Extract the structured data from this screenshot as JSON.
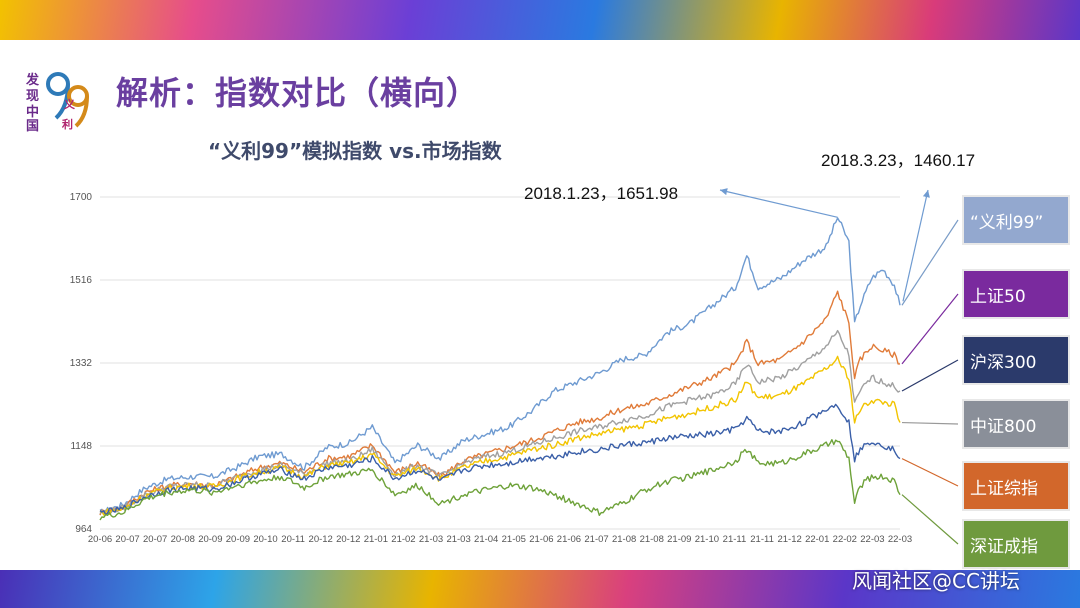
{
  "slide": {
    "title": "解析：指数对比（横向）",
    "logo_text": "发现中国 义利 99",
    "watermark": "风闻社区@CC讲坛"
  },
  "chart_data": {
    "type": "line",
    "title": "“义利99”模拟指数 vs.市场指数",
    "y_ticks": [
      964,
      1148,
      1332,
      1516,
      1700
    ],
    "ylim": [
      964,
      1700
    ],
    "x_ticks": [
      "20-06",
      "20-07",
      "20-07",
      "20-08",
      "20-09",
      "20-09",
      "20-10",
      "20-11",
      "20-12",
      "20-12",
      "21-01",
      "21-02",
      "21-03",
      "21-03",
      "21-04",
      "21-05",
      "21-06",
      "21-06",
      "21-07",
      "21-08",
      "21-08",
      "21-09",
      "21-10",
      "21-11",
      "21-11",
      "21-12",
      "22-01",
      "22-02",
      "22-03",
      "22-03"
    ],
    "annotations": [
      {
        "label": "2018.1.23，1651.98",
        "x": "22-01",
        "y": 1652
      },
      {
        "label": "2018.3.23，1460.17",
        "x": "22-03",
        "y": 1460
      }
    ],
    "series": [
      {
        "name": "“义利99”",
        "color": "#6f9bd1",
        "box_color": "#93a8cf",
        "anchors": [
          [
            0,
            1000
          ],
          [
            2,
            1018
          ],
          [
            4,
            1055
          ],
          [
            6,
            1075
          ],
          [
            8,
            1080
          ],
          [
            10,
            1080
          ],
          [
            12,
            1100
          ],
          [
            14,
            1125
          ],
          [
            16,
            1130
          ],
          [
            18,
            1100
          ],
          [
            20,
            1145
          ],
          [
            22,
            1155
          ],
          [
            24,
            1190
          ],
          [
            26,
            1110
          ],
          [
            28,
            1150
          ],
          [
            30,
            1120
          ],
          [
            32,
            1160
          ],
          [
            34,
            1175
          ],
          [
            36,
            1190
          ],
          [
            38,
            1225
          ],
          [
            40,
            1270
          ],
          [
            42,
            1290
          ],
          [
            44,
            1310
          ],
          [
            46,
            1340
          ],
          [
            48,
            1350
          ],
          [
            50,
            1400
          ],
          [
            52,
            1420
          ],
          [
            54,
            1460
          ],
          [
            56,
            1500
          ],
          [
            57,
            1570
          ],
          [
            58,
            1500
          ],
          [
            60,
            1520
          ],
          [
            62,
            1560
          ],
          [
            64,
            1590
          ],
          [
            65,
            1655
          ],
          [
            66,
            1600
          ],
          [
            66.5,
            1420
          ],
          [
            67,
            1460
          ],
          [
            68,
            1520
          ],
          [
            69,
            1540
          ],
          [
            70,
            1505
          ],
          [
            70.5,
            1460
          ]
        ]
      },
      {
        "name": "上证50",
        "color": "#e07b39",
        "box_color": "#7a2a9e",
        "anchors": [
          [
            0,
            1000
          ],
          [
            2,
            1012
          ],
          [
            4,
            1045
          ],
          [
            6,
            1060
          ],
          [
            8,
            1065
          ],
          [
            10,
            1060
          ],
          [
            12,
            1080
          ],
          [
            14,
            1100
          ],
          [
            16,
            1110
          ],
          [
            18,
            1090
          ],
          [
            20,
            1120
          ],
          [
            22,
            1125
          ],
          [
            24,
            1150
          ],
          [
            26,
            1090
          ],
          [
            28,
            1110
          ],
          [
            30,
            1080
          ],
          [
            32,
            1115
          ],
          [
            34,
            1130
          ],
          [
            36,
            1145
          ],
          [
            38,
            1160
          ],
          [
            40,
            1180
          ],
          [
            42,
            1200
          ],
          [
            44,
            1210
          ],
          [
            46,
            1230
          ],
          [
            48,
            1240
          ],
          [
            50,
            1260
          ],
          [
            52,
            1280
          ],
          [
            54,
            1300
          ],
          [
            56,
            1330
          ],
          [
            57,
            1380
          ],
          [
            58,
            1330
          ],
          [
            60,
            1340
          ],
          [
            62,
            1380
          ],
          [
            64,
            1430
          ],
          [
            65,
            1490
          ],
          [
            66,
            1420
          ],
          [
            66.5,
            1300
          ],
          [
            67,
            1340
          ],
          [
            68,
            1370
          ],
          [
            69,
            1360
          ],
          [
            70,
            1350
          ],
          [
            70.5,
            1330
          ]
        ]
      },
      {
        "name": "沪深300",
        "color": "#a0a0a0",
        "box_color": "#2b3a6b",
        "anchors": [
          [
            0,
            1000
          ],
          [
            2,
            1010
          ],
          [
            4,
            1040
          ],
          [
            6,
            1058
          ],
          [
            8,
            1062
          ],
          [
            10,
            1060
          ],
          [
            12,
            1078
          ],
          [
            14,
            1095
          ],
          [
            16,
            1105
          ],
          [
            18,
            1085
          ],
          [
            20,
            1110
          ],
          [
            22,
            1115
          ],
          [
            24,
            1140
          ],
          [
            26,
            1085
          ],
          [
            28,
            1105
          ],
          [
            30,
            1080
          ],
          [
            32,
            1110
          ],
          [
            34,
            1125
          ],
          [
            36,
            1135
          ],
          [
            38,
            1150
          ],
          [
            40,
            1165
          ],
          [
            42,
            1180
          ],
          [
            44,
            1190
          ],
          [
            46,
            1205
          ],
          [
            48,
            1215
          ],
          [
            50,
            1235
          ],
          [
            52,
            1250
          ],
          [
            54,
            1260
          ],
          [
            56,
            1285
          ],
          [
            57,
            1330
          ],
          [
            58,
            1290
          ],
          [
            60,
            1300
          ],
          [
            62,
            1330
          ],
          [
            64,
            1370
          ],
          [
            65,
            1400
          ],
          [
            66,
            1350
          ],
          [
            66.5,
            1240
          ],
          [
            67,
            1270
          ],
          [
            68,
            1300
          ],
          [
            69,
            1290
          ],
          [
            70,
            1280
          ],
          [
            70.5,
            1270
          ]
        ]
      },
      {
        "name": "中证800",
        "color": "#f2c400",
        "box_color": "#8a8f99",
        "anchors": [
          [
            0,
            1000
          ],
          [
            2,
            1008
          ],
          [
            4,
            1038
          ],
          [
            6,
            1055
          ],
          [
            8,
            1060
          ],
          [
            10,
            1058
          ],
          [
            12,
            1075
          ],
          [
            14,
            1090
          ],
          [
            16,
            1100
          ],
          [
            18,
            1080
          ],
          [
            20,
            1105
          ],
          [
            22,
            1110
          ],
          [
            24,
            1130
          ],
          [
            26,
            1080
          ],
          [
            28,
            1100
          ],
          [
            30,
            1075
          ],
          [
            32,
            1100
          ],
          [
            34,
            1115
          ],
          [
            36,
            1125
          ],
          [
            38,
            1140
          ],
          [
            40,
            1150
          ],
          [
            42,
            1165
          ],
          [
            44,
            1175
          ],
          [
            46,
            1185
          ],
          [
            48,
            1195
          ],
          [
            50,
            1210
          ],
          [
            52,
            1220
          ],
          [
            54,
            1235
          ],
          [
            56,
            1250
          ],
          [
            57,
            1290
          ],
          [
            58,
            1255
          ],
          [
            60,
            1260
          ],
          [
            62,
            1285
          ],
          [
            64,
            1320
          ],
          [
            65,
            1340
          ],
          [
            66,
            1300
          ],
          [
            66.5,
            1200
          ],
          [
            67,
            1230
          ],
          [
            68,
            1250
          ],
          [
            69,
            1245
          ],
          [
            70,
            1240
          ],
          [
            70.5,
            1200
          ]
        ]
      },
      {
        "name": "上证综指",
        "color": "#3a5fa8",
        "box_color": "#d2672b",
        "anchors": [
          [
            0,
            1000
          ],
          [
            2,
            1008
          ],
          [
            4,
            1036
          ],
          [
            6,
            1050
          ],
          [
            8,
            1055
          ],
          [
            10,
            1052
          ],
          [
            12,
            1068
          ],
          [
            14,
            1085
          ],
          [
            16,
            1095
          ],
          [
            18,
            1075
          ],
          [
            20,
            1100
          ],
          [
            22,
            1105
          ],
          [
            24,
            1120
          ],
          [
            26,
            1075
          ],
          [
            28,
            1095
          ],
          [
            30,
            1070
          ],
          [
            32,
            1095
          ],
          [
            34,
            1105
          ],
          [
            36,
            1110
          ],
          [
            38,
            1120
          ],
          [
            40,
            1125
          ],
          [
            42,
            1135
          ],
          [
            44,
            1140
          ],
          [
            46,
            1150
          ],
          [
            48,
            1155
          ],
          [
            50,
            1165
          ],
          [
            52,
            1170
          ],
          [
            54,
            1175
          ],
          [
            56,
            1185
          ],
          [
            57,
            1210
          ],
          [
            58,
            1180
          ],
          [
            60,
            1180
          ],
          [
            62,
            1200
          ],
          [
            64,
            1230
          ],
          [
            65,
            1240
          ],
          [
            66,
            1200
          ],
          [
            66.5,
            1120
          ],
          [
            67,
            1140
          ],
          [
            68,
            1160
          ],
          [
            69,
            1150
          ],
          [
            70,
            1140
          ],
          [
            70.5,
            1120
          ]
        ]
      },
      {
        "name": "深证成指",
        "color": "#6ea23a",
        "box_color": "#6f9a3e",
        "anchors": [
          [
            0,
            990
          ],
          [
            2,
            1000
          ],
          [
            4,
            1030
          ],
          [
            6,
            1045
          ],
          [
            8,
            1050
          ],
          [
            10,
            1045
          ],
          [
            12,
            1060
          ],
          [
            14,
            1070
          ],
          [
            16,
            1080
          ],
          [
            18,
            1055
          ],
          [
            20,
            1080
          ],
          [
            22,
            1085
          ],
          [
            24,
            1095
          ],
          [
            26,
            1040
          ],
          [
            28,
            1060
          ],
          [
            30,
            1020
          ],
          [
            32,
            1040
          ],
          [
            34,
            1050
          ],
          [
            36,
            1060
          ],
          [
            38,
            1055
          ],
          [
            40,
            1040
          ],
          [
            42,
            1020
          ],
          [
            44,
            1000
          ],
          [
            46,
            1020
          ],
          [
            48,
            1050
          ],
          [
            50,
            1070
          ],
          [
            52,
            1080
          ],
          [
            54,
            1095
          ],
          [
            56,
            1115
          ],
          [
            57,
            1140
          ],
          [
            58,
            1110
          ],
          [
            60,
            1110
          ],
          [
            62,
            1130
          ],
          [
            64,
            1150
          ],
          [
            65,
            1160
          ],
          [
            66,
            1120
          ],
          [
            66.5,
            1020
          ],
          [
            67,
            1060
          ],
          [
            68,
            1080
          ],
          [
            69,
            1080
          ],
          [
            70,
            1070
          ],
          [
            70.5,
            1040
          ]
        ]
      }
    ]
  }
}
